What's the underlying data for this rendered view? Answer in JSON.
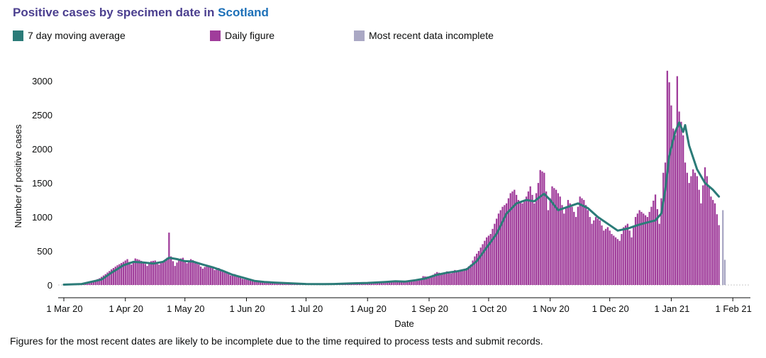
{
  "header": {
    "title_prefix": "Positive cases by specimen date in",
    "title_area": "Scotland"
  },
  "legend": [
    {
      "label": "7 day moving average",
      "color": "#2b7b78"
    },
    {
      "label": "Daily figure",
      "color": "#a03d9b"
    },
    {
      "label": "Most recent data incomplete",
      "color": "#aaa8c4"
    }
  ],
  "footnote": "Figures for the most recent dates are likely to be incomplete due to the time required to process tests and submit records.",
  "chart_data": {
    "type": "bar",
    "xlabel": "Date",
    "ylabel": "Number of positive cases",
    "ylim": [
      0,
      3200
    ],
    "yticks": [
      0,
      500,
      1000,
      1500,
      2000,
      2500,
      3000
    ],
    "x_start": "2020-03-01",
    "x_end": "2021-02-01",
    "incomplete_from": "2021-01-28",
    "xticks": [
      {
        "date": "2020-03-01",
        "label": "1 Mar 20"
      },
      {
        "date": "2020-04-01",
        "label": "1 Apr 20"
      },
      {
        "date": "2020-05-01",
        "label": "1 May 20"
      },
      {
        "date": "2020-06-01",
        "label": "1 Jun 20"
      },
      {
        "date": "2020-07-01",
        "label": "1 Jul 20"
      },
      {
        "date": "2020-08-01",
        "label": "1 Aug 20"
      },
      {
        "date": "2020-09-01",
        "label": "1 Sep 20"
      },
      {
        "date": "2020-10-01",
        "label": "1 Oct 20"
      },
      {
        "date": "2020-11-01",
        "label": "1 Nov 20"
      },
      {
        "date": "2020-12-01",
        "label": "1 Dec 20"
      },
      {
        "date": "2021-01-01",
        "label": "1 Jan 21"
      },
      {
        "date": "2021-02-01",
        "label": "1 Feb 21"
      }
    ],
    "series": [
      {
        "name": "Daily figure",
        "color": "#a03d9b",
        "points": [
          [
            "2020-03-01",
            2
          ],
          [
            "2020-03-04",
            5
          ],
          [
            "2020-03-07",
            10
          ],
          [
            "2020-03-10",
            20
          ],
          [
            "2020-03-13",
            40
          ],
          [
            "2020-03-16",
            60
          ],
          [
            "2020-03-19",
            100
          ],
          [
            "2020-03-22",
            160
          ],
          [
            "2020-03-25",
            230
          ],
          [
            "2020-03-28",
            290
          ],
          [
            "2020-03-31",
            340
          ],
          [
            "2020-04-02",
            380
          ],
          [
            "2020-04-04",
            300
          ],
          [
            "2020-04-06",
            390
          ],
          [
            "2020-04-08",
            370
          ],
          [
            "2020-04-10",
            340
          ],
          [
            "2020-04-12",
            280
          ],
          [
            "2020-04-14",
            350
          ],
          [
            "2020-04-16",
            360
          ],
          [
            "2020-04-18",
            300
          ],
          [
            "2020-04-20",
            340
          ],
          [
            "2020-04-22",
            400
          ],
          [
            "2020-04-23",
            770
          ],
          [
            "2020-04-24",
            420
          ],
          [
            "2020-04-26",
            280
          ],
          [
            "2020-04-28",
            380
          ],
          [
            "2020-04-30",
            400
          ],
          [
            "2020-05-02",
            320
          ],
          [
            "2020-05-04",
            380
          ],
          [
            "2020-05-06",
            350
          ],
          [
            "2020-05-08",
            300
          ],
          [
            "2020-05-10",
            240
          ],
          [
            "2020-05-12",
            290
          ],
          [
            "2020-05-14",
            270
          ],
          [
            "2020-05-16",
            220
          ],
          [
            "2020-05-18",
            250
          ],
          [
            "2020-05-20",
            210
          ],
          [
            "2020-05-22",
            180
          ],
          [
            "2020-05-24",
            140
          ],
          [
            "2020-05-26",
            160
          ],
          [
            "2020-05-28",
            120
          ],
          [
            "2020-05-30",
            90
          ],
          [
            "2020-06-01",
            80
          ],
          [
            "2020-06-04",
            60
          ],
          [
            "2020-06-07",
            45
          ],
          [
            "2020-06-10",
            40
          ],
          [
            "2020-06-14",
            30
          ],
          [
            "2020-06-18",
            25
          ],
          [
            "2020-06-22",
            20
          ],
          [
            "2020-06-26",
            18
          ],
          [
            "2020-06-30",
            15
          ],
          [
            "2020-07-04",
            12
          ],
          [
            "2020-07-08",
            10
          ],
          [
            "2020-07-12",
            10
          ],
          [
            "2020-07-16",
            12
          ],
          [
            "2020-07-20",
            15
          ],
          [
            "2020-07-24",
            15
          ],
          [
            "2020-07-28",
            20
          ],
          [
            "2020-08-01",
            25
          ],
          [
            "2020-08-04",
            30
          ],
          [
            "2020-08-07",
            40
          ],
          [
            "2020-08-10",
            50
          ],
          [
            "2020-08-13",
            55
          ],
          [
            "2020-08-16",
            45
          ],
          [
            "2020-08-19",
            60
          ],
          [
            "2020-08-22",
            70
          ],
          [
            "2020-08-25",
            80
          ],
          [
            "2020-08-28",
            90
          ],
          [
            "2020-08-29",
            130
          ],
          [
            "2020-09-01",
            120
          ],
          [
            "2020-09-03",
            150
          ],
          [
            "2020-09-05",
            190
          ],
          [
            "2020-09-08",
            160
          ],
          [
            "2020-09-10",
            200
          ],
          [
            "2020-09-12",
            170
          ],
          [
            "2020-09-14",
            220
          ],
          [
            "2020-09-16",
            210
          ],
          [
            "2020-09-18",
            230
          ],
          [
            "2020-09-20",
            250
          ],
          [
            "2020-09-22",
            300
          ],
          [
            "2020-09-24",
            420
          ],
          [
            "2020-09-26",
            500
          ],
          [
            "2020-09-28",
            600
          ],
          [
            "2020-09-30",
            700
          ],
          [
            "2020-10-02",
            750
          ],
          [
            "2020-10-04",
            900
          ],
          [
            "2020-10-06",
            1050
          ],
          [
            "2020-10-08",
            1150
          ],
          [
            "2020-10-10",
            1200
          ],
          [
            "2020-10-12",
            1350
          ],
          [
            "2020-10-14",
            1400
          ],
          [
            "2020-10-16",
            1250
          ],
          [
            "2020-10-18",
            1200
          ],
          [
            "2020-10-20",
            1300
          ],
          [
            "2020-10-22",
            1450
          ],
          [
            "2020-10-24",
            1200
          ],
          [
            "2020-10-26",
            1500
          ],
          [
            "2020-10-27",
            1690
          ],
          [
            "2020-10-29",
            1650
          ],
          [
            "2020-10-31",
            1100
          ],
          [
            "2020-11-02",
            1450
          ],
          [
            "2020-11-04",
            1400
          ],
          [
            "2020-11-06",
            1300
          ],
          [
            "2020-11-08",
            1050
          ],
          [
            "2020-11-10",
            1250
          ],
          [
            "2020-11-12",
            1150
          ],
          [
            "2020-11-14",
            1000
          ],
          [
            "2020-11-16",
            1300
          ],
          [
            "2020-11-18",
            1250
          ],
          [
            "2020-11-20",
            1100
          ],
          [
            "2020-11-22",
            900
          ],
          [
            "2020-11-24",
            1000
          ],
          [
            "2020-11-26",
            950
          ],
          [
            "2020-11-28",
            800
          ],
          [
            "2020-11-30",
            850
          ],
          [
            "2020-12-02",
            750
          ],
          [
            "2020-12-04",
            700
          ],
          [
            "2020-12-06",
            650
          ],
          [
            "2020-12-08",
            850
          ],
          [
            "2020-12-10",
            900
          ],
          [
            "2020-12-12",
            700
          ],
          [
            "2020-12-14",
            1000
          ],
          [
            "2020-12-16",
            1100
          ],
          [
            "2020-12-18",
            1050
          ],
          [
            "2020-12-20",
            1000
          ],
          [
            "2020-12-22",
            1150
          ],
          [
            "2020-12-24",
            1330
          ],
          [
            "2020-12-26",
            900
          ],
          [
            "2020-12-28",
            1650
          ],
          [
            "2020-12-29",
            1800
          ],
          [
            "2020-12-30",
            3150
          ],
          [
            "2020-12-31",
            2980
          ],
          [
            "2021-01-02",
            2300
          ],
          [
            "2021-01-03",
            2200
          ],
          [
            "2021-01-04",
            3070
          ],
          [
            "2021-01-05",
            2550
          ],
          [
            "2021-01-06",
            2400
          ],
          [
            "2021-01-07",
            2200
          ],
          [
            "2021-01-08",
            1800
          ],
          [
            "2021-01-10",
            1500
          ],
          [
            "2021-01-12",
            1700
          ],
          [
            "2021-01-14",
            1600
          ],
          [
            "2021-01-16",
            1200
          ],
          [
            "2021-01-18",
            1730
          ],
          [
            "2021-01-19",
            1600
          ],
          [
            "2021-01-21",
            1300
          ],
          [
            "2021-01-23",
            1200
          ],
          [
            "2021-01-25",
            880
          ]
        ]
      },
      {
        "name": "7 day moving average",
        "color": "#2b7b78",
        "points": [
          [
            "2020-03-01",
            5
          ],
          [
            "2020-03-10",
            15
          ],
          [
            "2020-03-20",
            80
          ],
          [
            "2020-03-25",
            180
          ],
          [
            "2020-03-31",
            290
          ],
          [
            "2020-04-05",
            340
          ],
          [
            "2020-04-10",
            330
          ],
          [
            "2020-04-15",
            315
          ],
          [
            "2020-04-20",
            340
          ],
          [
            "2020-04-23",
            400
          ],
          [
            "2020-04-27",
            380
          ],
          [
            "2020-05-01",
            350
          ],
          [
            "2020-05-05",
            345
          ],
          [
            "2020-05-10",
            300
          ],
          [
            "2020-05-15",
            260
          ],
          [
            "2020-05-20",
            210
          ],
          [
            "2020-05-25",
            150
          ],
          [
            "2020-05-30",
            110
          ],
          [
            "2020-06-05",
            60
          ],
          [
            "2020-06-10",
            45
          ],
          [
            "2020-06-15",
            35
          ],
          [
            "2020-06-20",
            28
          ],
          [
            "2020-06-25",
            22
          ],
          [
            "2020-07-01",
            15
          ],
          [
            "2020-07-10",
            12
          ],
          [
            "2020-07-15",
            15
          ],
          [
            "2020-07-25",
            25
          ],
          [
            "2020-08-01",
            30
          ],
          [
            "2020-08-10",
            45
          ],
          [
            "2020-08-15",
            55
          ],
          [
            "2020-08-20",
            50
          ],
          [
            "2020-08-25",
            70
          ],
          [
            "2020-08-30",
            95
          ],
          [
            "2020-09-05",
            150
          ],
          [
            "2020-09-10",
            180
          ],
          [
            "2020-09-15",
            200
          ],
          [
            "2020-09-20",
            230
          ],
          [
            "2020-09-25",
            350
          ],
          [
            "2020-09-30",
            550
          ],
          [
            "2020-10-05",
            750
          ],
          [
            "2020-10-10",
            1050
          ],
          [
            "2020-10-15",
            1200
          ],
          [
            "2020-10-20",
            1250
          ],
          [
            "2020-10-24",
            1230
          ],
          [
            "2020-10-27",
            1300
          ],
          [
            "2020-10-29",
            1340
          ],
          [
            "2020-11-01",
            1250
          ],
          [
            "2020-11-05",
            1100
          ],
          [
            "2020-11-10",
            1150
          ],
          [
            "2020-11-15",
            1200
          ],
          [
            "2020-11-20",
            1130
          ],
          [
            "2020-11-25",
            1000
          ],
          [
            "2020-11-30",
            900
          ],
          [
            "2020-12-05",
            800
          ],
          [
            "2020-12-10",
            830
          ],
          [
            "2020-12-15",
            880
          ],
          [
            "2020-12-20",
            920
          ],
          [
            "2020-12-24",
            950
          ],
          [
            "2020-12-27",
            1050
          ],
          [
            "2020-12-29",
            1400
          ],
          [
            "2020-12-31",
            1900
          ],
          [
            "2021-01-03",
            2250
          ],
          [
            "2021-01-05",
            2390
          ],
          [
            "2021-01-07",
            2250
          ],
          [
            "2021-01-08",
            2350
          ],
          [
            "2021-01-10",
            2050
          ],
          [
            "2021-01-14",
            1700
          ],
          [
            "2021-01-18",
            1500
          ],
          [
            "2021-01-22",
            1400
          ],
          [
            "2021-01-25",
            1300
          ]
        ]
      },
      {
        "name": "Most recent data incomplete",
        "color": "#aaa8c4",
        "points": [
          [
            "2021-01-27",
            1100
          ],
          [
            "2021-01-28",
            370
          ]
        ]
      }
    ]
  }
}
